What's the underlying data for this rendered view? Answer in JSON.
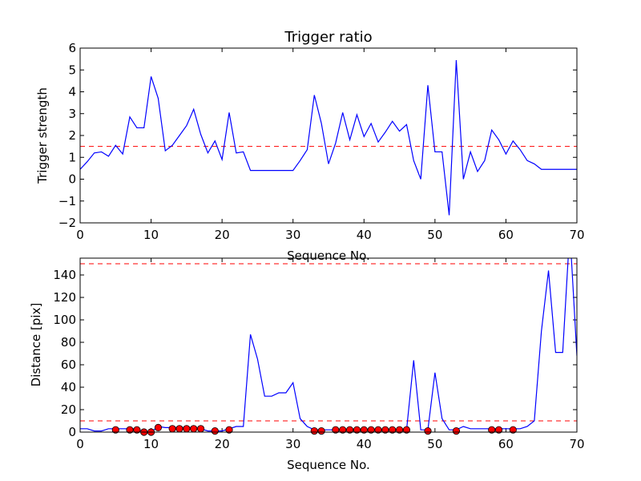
{
  "chart_data": [
    {
      "type": "line",
      "title": "Trigger ratio",
      "xlabel": "Sequence No.",
      "ylabel": "Trigger strength",
      "xlim": [
        0,
        70
      ],
      "ylim": [
        -2,
        6
      ],
      "xticks": [
        0,
        10,
        20,
        30,
        40,
        50,
        60,
        70
      ],
      "yticks": [
        -2,
        -1,
        0,
        1,
        2,
        3,
        4,
        5,
        6
      ],
      "ytick_labels": [
        "−2",
        "−1",
        "0",
        "1",
        "2",
        "3",
        "4",
        "5",
        "6"
      ],
      "grid": false,
      "colors": {
        "series": "#0000ff",
        "threshold": "#ff0000"
      },
      "series": [
        {
          "x": [
            0,
            1,
            2,
            3,
            4,
            5,
            6,
            7,
            8,
            9,
            10,
            11,
            12,
            13,
            14,
            15,
            16,
            17,
            18,
            19,
            20,
            21,
            22,
            23,
            24,
            25,
            26,
            27,
            28,
            29,
            30,
            31,
            32,
            33,
            34,
            35,
            36,
            37,
            38,
            39,
            40,
            41,
            42,
            43,
            44,
            45,
            46,
            47,
            48,
            49,
            50,
            51,
            52,
            53,
            54,
            55,
            56,
            57,
            58,
            59,
            60,
            61,
            62,
            63,
            64,
            65,
            66,
            67,
            68,
            69,
            70
          ],
          "values": [
            0.45,
            0.8,
            1.2,
            1.25,
            1.05,
            1.55,
            1.15,
            2.85,
            2.35,
            2.35,
            4.7,
            3.7,
            1.3,
            1.55,
            2.0,
            2.45,
            3.2,
            2.05,
            1.2,
            1.75,
            0.9,
            3.05,
            1.2,
            1.25,
            0.4,
            0.4,
            0.4,
            0.4,
            0.4,
            0.4,
            0.4,
            0.85,
            1.35,
            3.85,
            2.55,
            0.7,
            1.65,
            3.05,
            1.8,
            2.95,
            1.95,
            2.55,
            1.7,
            2.15,
            2.65,
            2.2,
            2.5,
            0.85,
            0.0,
            4.3,
            1.25,
            1.25,
            -1.65,
            5.45,
            0.0,
            1.25,
            0.35,
            0.85,
            2.25,
            1.8,
            1.15,
            1.75,
            1.35,
            0.85,
            0.7,
            0.45,
            0.45,
            0.45,
            0.45,
            0.45,
            0.45
          ]
        }
      ],
      "reference_lines": [
        {
          "y": 1.5,
          "style": "dashed"
        }
      ]
    },
    {
      "type": "line",
      "title": "",
      "xlabel": "Sequence No.",
      "ylabel": "Distance [pix]",
      "xlim": [
        0,
        70
      ],
      "ylim": [
        0,
        155
      ],
      "xticks": [
        0,
        10,
        20,
        30,
        40,
        50,
        60,
        70
      ],
      "yticks": [
        0,
        20,
        40,
        60,
        80,
        100,
        120,
        140
      ],
      "grid": false,
      "colors": {
        "series": "#0000ff",
        "threshold": "#ff0000",
        "markers": "#ff0000"
      },
      "series": [
        {
          "x": [
            0,
            1,
            2,
            3,
            4,
            5,
            6,
            7,
            8,
            9,
            10,
            11,
            12,
            13,
            14,
            15,
            16,
            17,
            18,
            19,
            20,
            21,
            22,
            23,
            24,
            25,
            26,
            27,
            28,
            29,
            30,
            31,
            32,
            33,
            34,
            35,
            36,
            37,
            38,
            39,
            40,
            41,
            42,
            43,
            44,
            45,
            46,
            47,
            48,
            49,
            50,
            51,
            52,
            53,
            54,
            55,
            56,
            57,
            58,
            59,
            60,
            61,
            62,
            63,
            64,
            65,
            66,
            67,
            68,
            69,
            70
          ],
          "values": [
            3,
            3,
            1,
            1,
            3,
            3,
            3,
            3,
            3,
            0,
            0,
            5,
            4,
            4,
            4,
            4,
            4,
            3,
            1,
            1,
            1,
            3,
            5,
            5,
            87,
            65,
            32,
            32,
            35,
            35,
            44,
            12,
            5,
            2,
            2,
            2,
            2,
            2,
            2,
            2,
            2,
            2,
            2,
            2,
            2,
            2,
            2,
            64,
            2,
            2,
            53,
            12,
            2,
            2,
            5,
            3,
            3,
            3,
            3,
            3,
            3,
            3,
            3,
            5,
            10,
            90,
            144,
            71,
            71,
            180,
            68
          ]
        }
      ],
      "markers": {
        "x": [
          5,
          7,
          8,
          9,
          10,
          11,
          13,
          14,
          15,
          16,
          17,
          19,
          21,
          33,
          34,
          36,
          37,
          38,
          39,
          40,
          41,
          42,
          43,
          44,
          45,
          46,
          49,
          53,
          58,
          59,
          61
        ],
        "values": [
          2,
          2,
          2,
          0,
          0,
          4,
          3,
          3,
          3,
          3,
          3,
          1,
          2,
          1,
          1,
          2,
          2,
          2,
          2,
          2,
          2,
          2,
          2,
          2,
          2,
          2,
          1,
          1,
          2,
          2,
          2
        ]
      },
      "reference_lines": [
        {
          "y": 150,
          "style": "dashed"
        },
        {
          "y": 10,
          "style": "dashed"
        }
      ]
    }
  ]
}
